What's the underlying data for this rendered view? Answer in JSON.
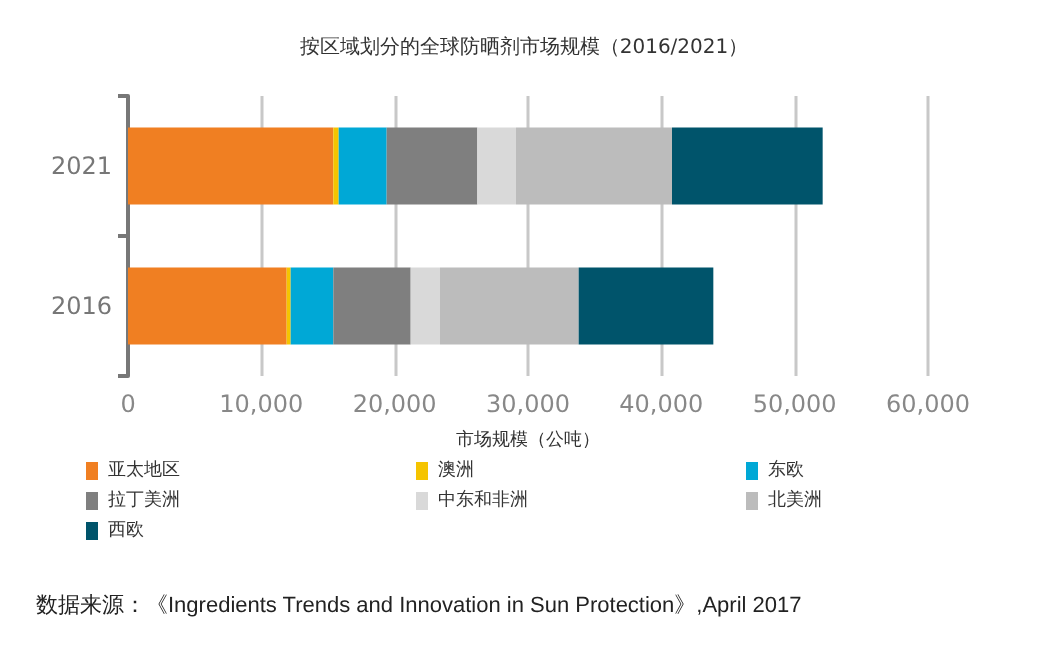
{
  "chart_data": {
    "type": "bar",
    "orientation": "horizontal",
    "stacked": true,
    "title": "按区域划分的全球防晒剂市场规模（2016/2021）",
    "xlabel": "市场规模（公吨）",
    "categories": [
      "2021",
      "2016"
    ],
    "series": [
      {
        "name": "亚太地区",
        "color": "#f07f22",
        "values": [
          15400,
          11900
        ]
      },
      {
        "name": "澳洲",
        "color": "#f5c400",
        "values": [
          400,
          300
        ]
      },
      {
        "name": "东欧",
        "color": "#00a8d6",
        "values": [
          3600,
          3200
        ]
      },
      {
        "name": "拉丁美洲",
        "color": "#7f7f7f",
        "values": [
          6800,
          5800
        ]
      },
      {
        "name": "中东和非洲",
        "color": "#d9d9d9",
        "values": [
          2900,
          2200
        ]
      },
      {
        "name": "北美洲",
        "color": "#bcbcbc",
        "values": [
          11700,
          10400
        ]
      },
      {
        "name": "西欧",
        "color": "#00546b",
        "values": [
          11300,
          10100
        ]
      }
    ],
    "xlim": [
      0,
      60000
    ],
    "xticks": [
      0,
      {
        "value": 10000,
        "label": "10,000"
      },
      {
        "value": 20000,
        "label": "20,000"
      },
      {
        "value": 30000,
        "label": "30,000"
      },
      {
        "value": 40000,
        "label": "40,000"
      },
      {
        "value": 50000,
        "label": "50,000"
      },
      {
        "value": 60000,
        "label": "60,000"
      }
    ],
    "grid": "x",
    "legend": "bottom",
    "annotations": [
      "数据来源：《Ingredients Trends and Innovation in Sun Protection》,April 2017"
    ]
  }
}
